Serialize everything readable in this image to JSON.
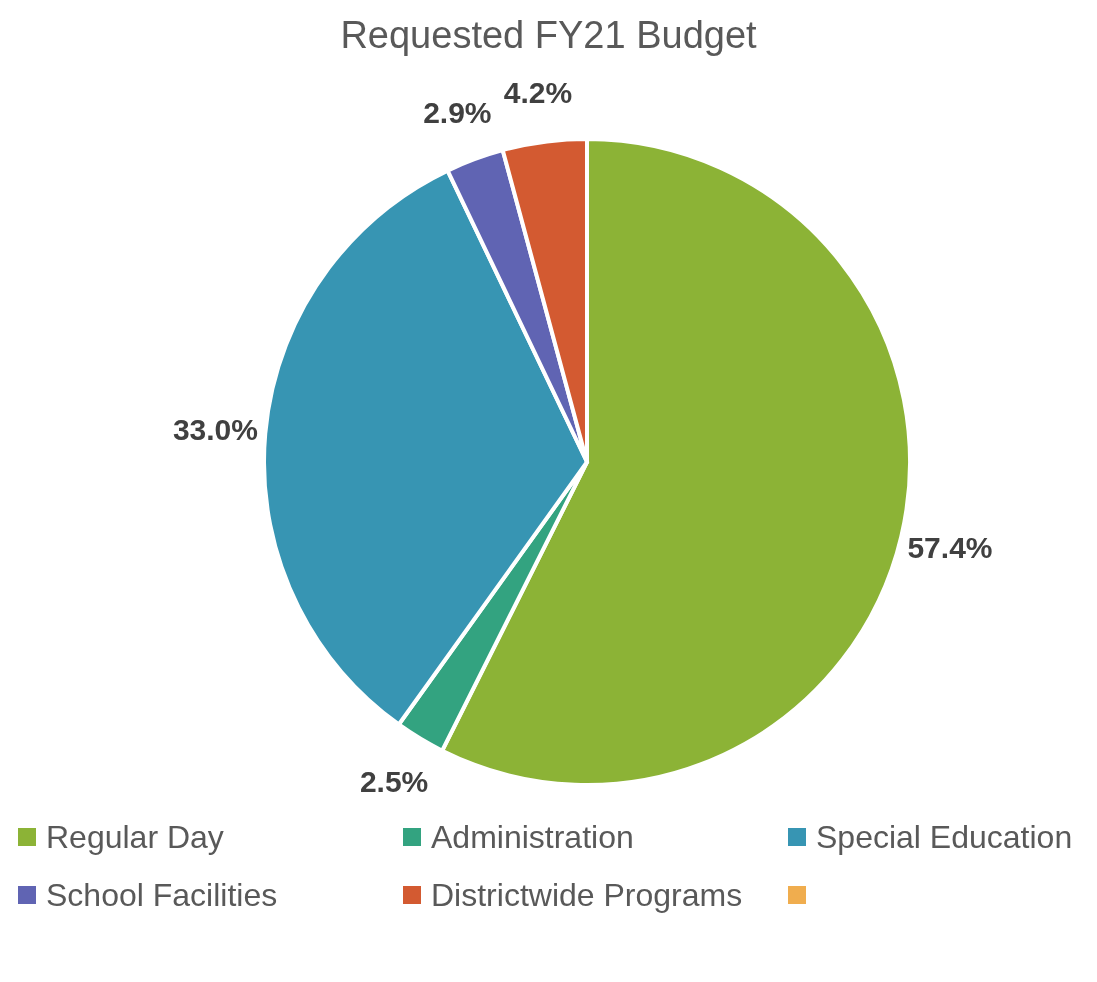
{
  "chart_data": {
    "type": "pie",
    "title": "Requested FY21 Budget",
    "categories": [
      "Regular Day",
      "Administration",
      "Special Education",
      "School Facilities",
      "Districtwide Programs",
      null
    ],
    "values": [
      57.4,
      2.5,
      33.0,
      2.9,
      4.2,
      0
    ],
    "colors": [
      "#8cb336",
      "#33a380",
      "#3795b3",
      "#6064b3",
      "#d35a31",
      "#f0ad4e"
    ],
    "value_labels": [
      "57.4%",
      "2.5%",
      "33.0%",
      "2.9%",
      "4.2%",
      null
    ],
    "legend": "bottom"
  }
}
